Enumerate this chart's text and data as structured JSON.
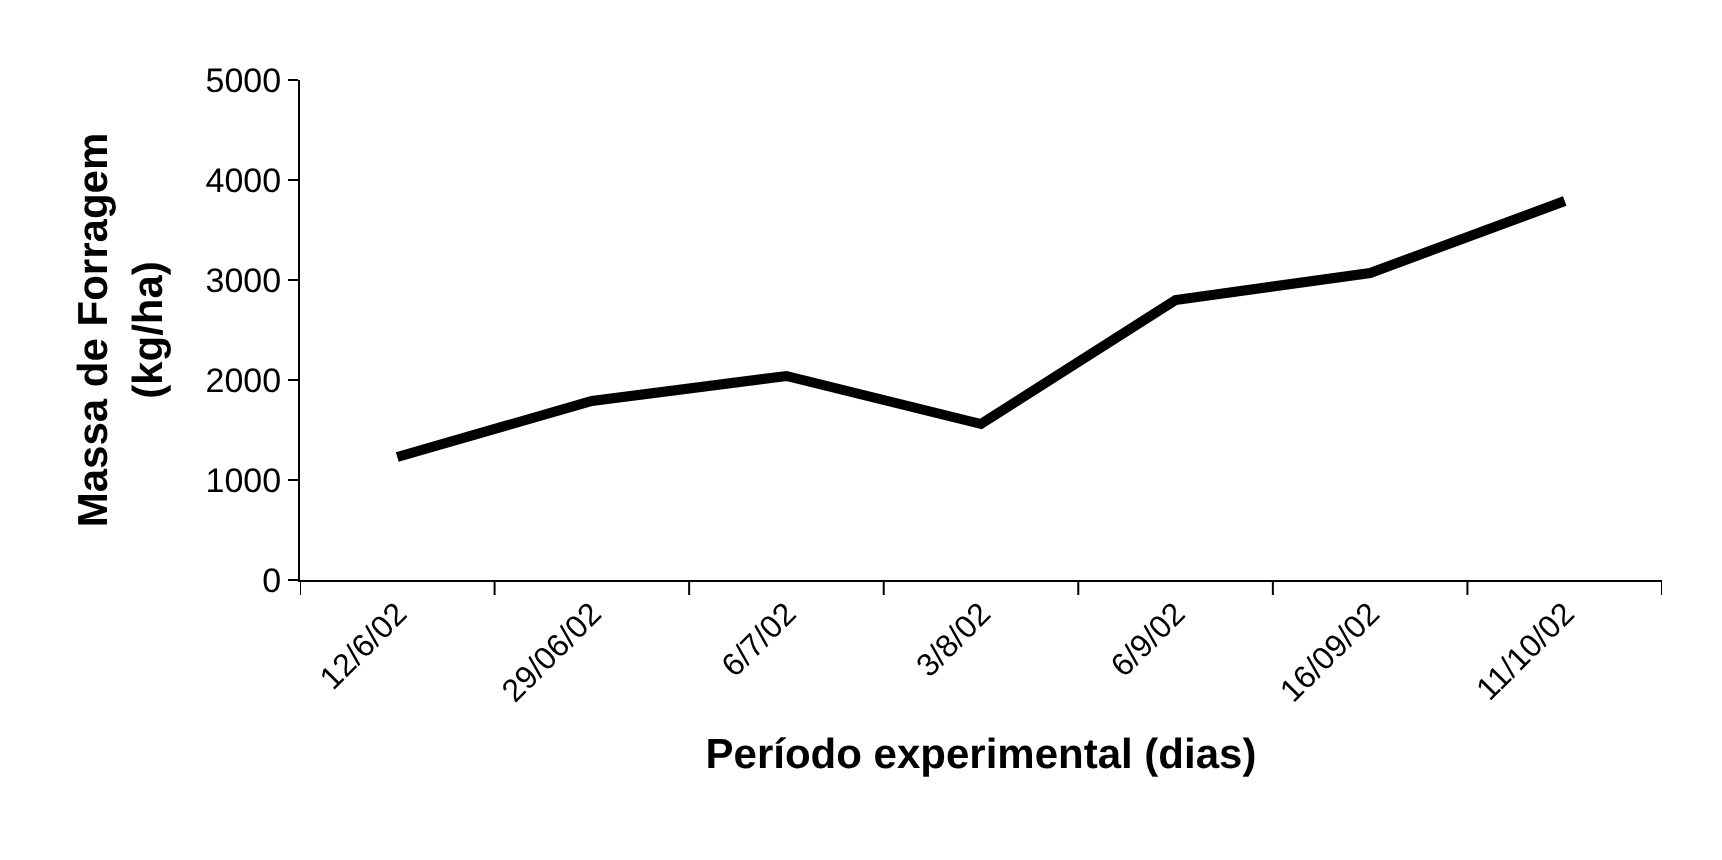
{
  "chart_data": {
    "type": "line",
    "xlabel": "Período experimental (dias)",
    "ylabel": "Massa de Forragem\n(kg/ha)",
    "categories": [
      "12/6/02",
      "29/06/02",
      "6/7/02",
      "3/8/02",
      "6/9/02",
      "16/09/02",
      "11/10/02"
    ],
    "series": [
      {
        "color": "#000000",
        "values": [
          1230,
          1790,
          2040,
          1560,
          2800,
          3070,
          3790
        ]
      }
    ],
    "ylim": [
      0,
      5000
    ],
    "yticks": [
      0,
      1000,
      2000,
      3000,
      4000,
      5000
    ],
    "marker": "none",
    "line_style": "solid"
  }
}
